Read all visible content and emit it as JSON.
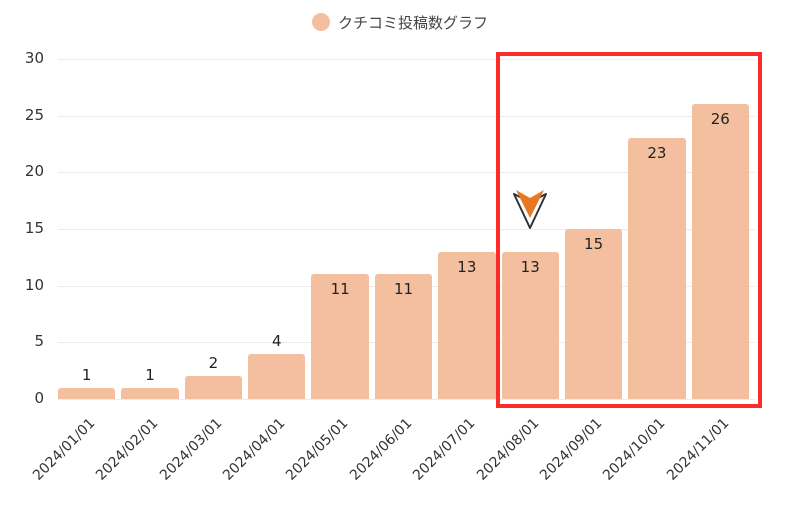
{
  "chart_data": {
    "type": "bar",
    "title": "",
    "legend": [
      "クチコミ投稿数グラフ"
    ],
    "legend_position": "top",
    "categories": [
      "2024/01/01",
      "2024/02/01",
      "2024/03/01",
      "2024/04/01",
      "2024/05/01",
      "2024/06/01",
      "2024/07/01",
      "2024/08/01",
      "2024/09/01",
      "2024/10/01",
      "2024/11/01"
    ],
    "series": [
      {
        "name": "クチコミ投稿数グラフ",
        "values": [
          1,
          1,
          2,
          4,
          11,
          11,
          13,
          13,
          15,
          23,
          26
        ]
      }
    ],
    "xlabel": "",
    "ylabel": "",
    "ylim": [
      0,
      30
    ],
    "yticks": [
      0,
      5,
      10,
      15,
      20,
      25,
      30
    ],
    "grid": true,
    "annotations": [
      {
        "type": "highlight-box",
        "from": "2024/08/01",
        "to": "2024/11/01",
        "color": "#ff2a2a"
      },
      {
        "type": "arrow-marker",
        "at": "2024/08/01",
        "color": "#e87722"
      }
    ]
  },
  "colors": {
    "bar": "#f3bf9f",
    "highlight": "#ff2a2a",
    "marker": "#e87722",
    "grid": "#ececec"
  },
  "legend": {
    "label": "クチコミ投稿数グラフ"
  }
}
